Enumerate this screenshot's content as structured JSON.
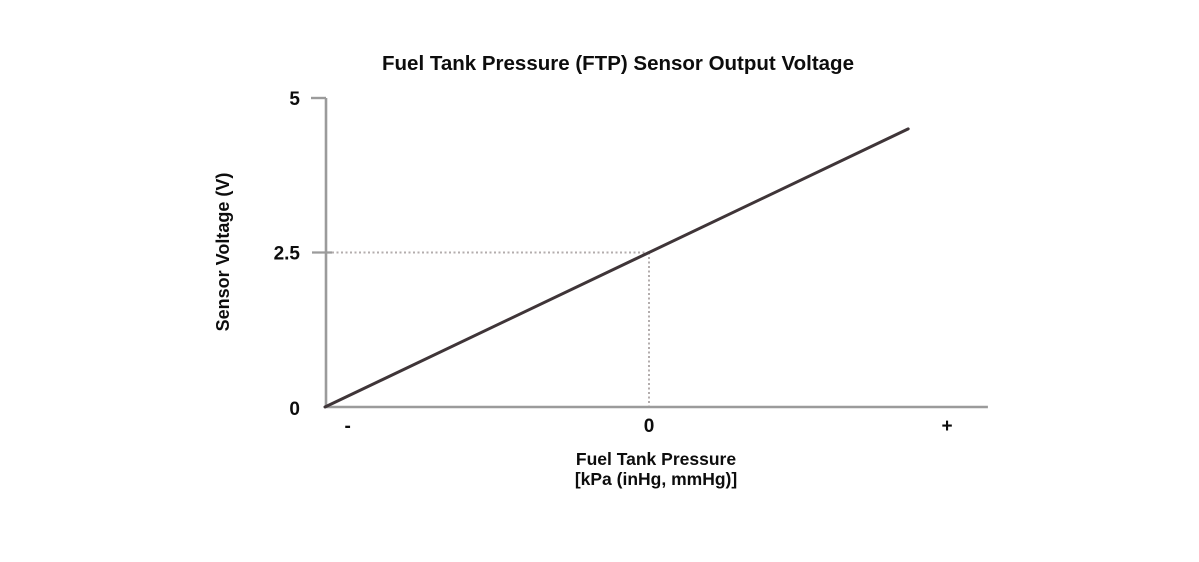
{
  "chart_data": {
    "type": "line",
    "title": "Fuel Tank Pressure (FTP) Sensor Output Voltage",
    "ylabel": "Sensor Voltage (V)",
    "xlabel_lines": [
      "Fuel Tank Pressure",
      "[kPa (inHg, mmHg)]"
    ],
    "y_range": [
      0,
      5
    ],
    "x_range": [
      -1,
      1.046
    ],
    "y_ticks": [
      {
        "value": 5,
        "label": "5",
        "tick_style": "left"
      },
      {
        "value": 2.5,
        "label": "2.5",
        "tick_style": "cross"
      },
      {
        "value": 0,
        "label": "0",
        "tick_style": "none"
      }
    ],
    "x_ticks": [
      {
        "pos": -0.93,
        "label": "-"
      },
      {
        "pos": 0,
        "label": "0"
      },
      {
        "pos": 0.92,
        "label": "+"
      }
    ],
    "series": [
      {
        "name": "sensor-output-voltage",
        "points": [
          [
            -1,
            0
          ],
          [
            0.8,
            4.5
          ]
        ],
        "color": "#3f3538",
        "width": 3
      }
    ],
    "reference": {
      "x": 0,
      "y": 2.5,
      "style": "dotted"
    },
    "grid": false,
    "legend": false,
    "colors": {
      "axis": "#9b9b9b",
      "dotted": "#b3adad",
      "text": "#0d0d0d",
      "background": "#ffffff"
    }
  }
}
